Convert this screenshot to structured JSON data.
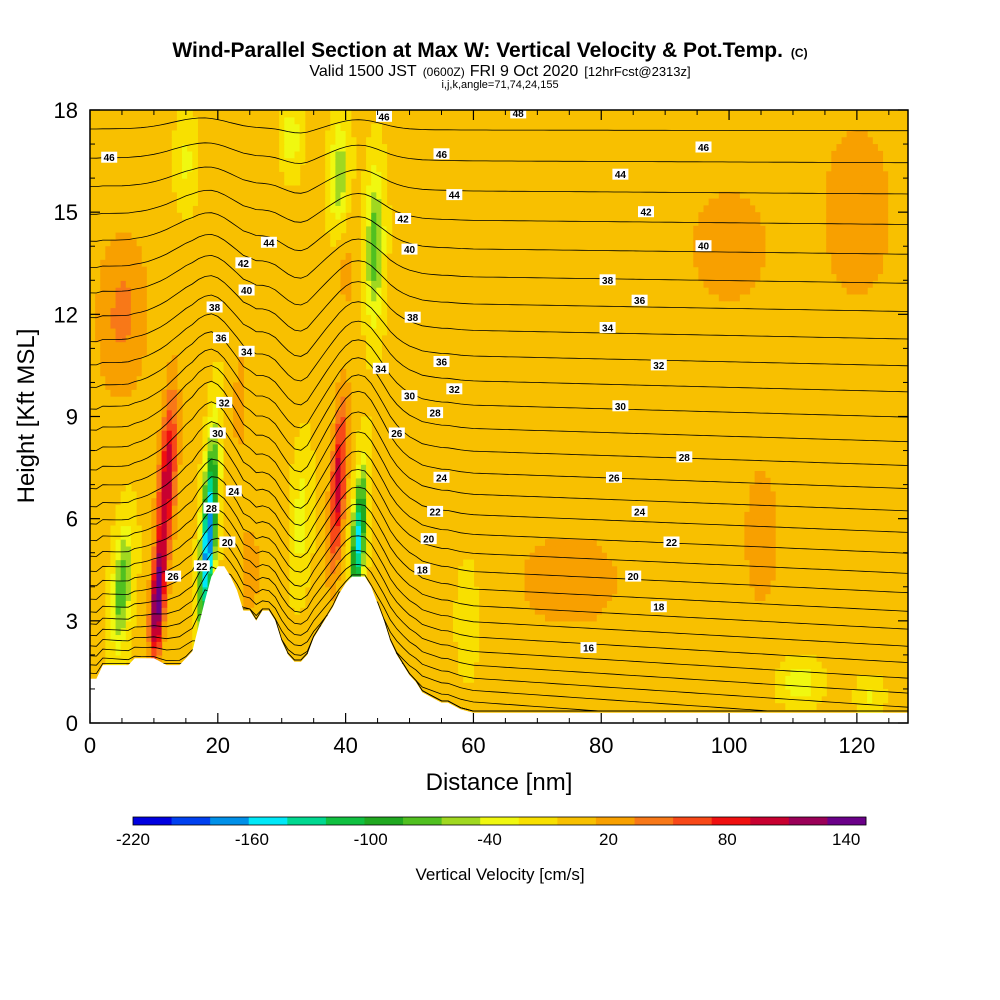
{
  "chart_data": {
    "type": "heatmap",
    "title": "Wind-Parallel Section at Max W: Vertical Velocity & Pot.Temp.",
    "title_mark": "(C)",
    "subtitle_prefix": "Valid 1500 JST",
    "subtitle_z": "(0600Z)",
    "subtitle_date": "FRI 9 Oct 2020",
    "subtitle_fcst": "[12hrFcst@2313z]",
    "subtitle_indices": "i,j,k,angle=71,74,24,155",
    "xlabel": "Distance [nm]",
    "ylabel": "Height [Kft MSL]",
    "xlim": [
      0,
      128
    ],
    "ylim": [
      0,
      18
    ],
    "xticks": [
      0,
      20,
      40,
      60,
      80,
      100,
      120
    ],
    "yticks": [
      0,
      3,
      6,
      9,
      12,
      15,
      18
    ],
    "colorbar": {
      "title": "Vertical Velocity [cm/s]",
      "bounds": [
        -220,
        150
      ],
      "step": 20,
      "tick_labels": [
        -220,
        -160,
        -100,
        -40,
        20,
        80,
        140
      ],
      "colors": [
        "#0000e0",
        "#0040f0",
        "#0090e8",
        "#00e8f8",
        "#00d890",
        "#10c040",
        "#20a820",
        "#50c020",
        "#a0d820",
        "#f0f810",
        "#f8e000",
        "#f8c000",
        "#f8a000",
        "#f87818",
        "#f84818",
        "#f01010",
        "#c80030",
        "#9a0058",
        "#6a0088"
      ]
    },
    "terrain": {
      "x": [
        0,
        1,
        2,
        4,
        6,
        7,
        8,
        10,
        12,
        14,
        16,
        18,
        19,
        20,
        21,
        22,
        23,
        24,
        25,
        26,
        27,
        28,
        29,
        30,
        31,
        32,
        33,
        34,
        35,
        36,
        37,
        38,
        39,
        40,
        41,
        42,
        43,
        44,
        45,
        46,
        47,
        48,
        49,
        50,
        51,
        52,
        54,
        55,
        56,
        58,
        60,
        70,
        80,
        90,
        100,
        110,
        120,
        128
      ],
      "kft": [
        1.3,
        1.3,
        1.7,
        1.7,
        1.7,
        1.9,
        1.9,
        1.9,
        1.7,
        1.7,
        2.1,
        3.6,
        4.3,
        4.6,
        4.6,
        4.3,
        3.9,
        3.3,
        3.3,
        3.0,
        3.3,
        3.3,
        3.0,
        2.4,
        2.0,
        1.8,
        1.8,
        2.0,
        2.5,
        2.8,
        3.1,
        3.4,
        3.8,
        4.1,
        4.3,
        4.3,
        4.3,
        4.0,
        3.5,
        3.0,
        2.4,
        2.0,
        1.7,
        1.4,
        1.2,
        0.9,
        0.7,
        0.6,
        0.6,
        0.4,
        0.3,
        0.3,
        0.3,
        0.3,
        0.3,
        0.3,
        0.3,
        0.3
      ]
    },
    "updrafts": [
      {
        "kind": "updraft",
        "x": 12.0,
        "y": 7.0,
        "sx": 1.3,
        "sy": 2.6,
        "tilt": 0.28,
        "value": 115
      },
      {
        "kind": "updraft",
        "x": 10.5,
        "y": 3.5,
        "sx": 1.0,
        "sy": 1.6,
        "tilt": 0.28,
        "value": 150
      },
      {
        "kind": "updraft",
        "x": 38.8,
        "y": 7.0,
        "sx": 1.1,
        "sy": 2.4,
        "tilt": 0.28,
        "value": 110
      },
      {
        "kind": "updraft",
        "x": 23.5,
        "y": 9.5,
        "sx": 1.0,
        "sy": 1.6,
        "tilt": 0.2,
        "value": 30
      },
      {
        "kind": "updraft",
        "x": 75,
        "y": 4.2,
        "sx": 8,
        "sy": 1.4,
        "tilt": 0,
        "value": 35
      },
      {
        "kind": "updraft",
        "x": 105,
        "y": 5.5,
        "sx": 3,
        "sy": 2.5,
        "tilt": 0,
        "value": 28
      },
      {
        "kind": "updraft",
        "x": 120,
        "y": 15,
        "sx": 6,
        "sy": 3,
        "tilt": 0,
        "value": 30
      },
      {
        "kind": "updraft",
        "x": 100,
        "y": 14,
        "sx": 7,
        "sy": 2,
        "tilt": 0,
        "value": 28
      },
      {
        "kind": "updraft",
        "x": 5,
        "y": 12,
        "sx": 4,
        "sy": 2.5,
        "tilt": 0.1,
        "value": 40
      },
      {
        "kind": "updraft",
        "x": 25,
        "y": 4.5,
        "sx": 1.3,
        "sy": 1.3,
        "tilt": 0,
        "value": 35
      },
      {
        "kind": "updraft",
        "x": 40,
        "y": 13.5,
        "sx": 2.0,
        "sy": 2.0,
        "tilt": 0,
        "value": 20
      },
      {
        "kind": "downdraft",
        "x": 18.5,
        "y": 5.4,
        "sx": 1.1,
        "sy": 2.8,
        "tilt": 0.28,
        "value": -190
      },
      {
        "kind": "downdraft",
        "x": 42.0,
        "y": 5.4,
        "sx": 1.0,
        "sy": 2.0,
        "tilt": 0.3,
        "value": -150
      },
      {
        "kind": "downdraft",
        "x": 44.5,
        "y": 14.0,
        "sx": 1.4,
        "sy": 2.2,
        "tilt": 0.08,
        "value": -80
      },
      {
        "kind": "downdraft",
        "x": 39.0,
        "y": 16.0,
        "sx": 1.5,
        "sy": 1.6,
        "tilt": 0.1,
        "value": -65
      },
      {
        "kind": "downdraft",
        "x": 31.5,
        "y": 17.2,
        "sx": 1.5,
        "sy": 1.0,
        "tilt": 0,
        "value": -40
      },
      {
        "kind": "downdraft",
        "x": 5,
        "y": 4.0,
        "sx": 1.5,
        "sy": 1.8,
        "tilt": 0.35,
        "value": -80
      },
      {
        "kind": "downdraft",
        "x": 33,
        "y": 6.0,
        "sx": 1.5,
        "sy": 2.0,
        "tilt": 0.2,
        "value": -35
      },
      {
        "kind": "downdraft",
        "x": 15,
        "y": 16.5,
        "sx": 1.6,
        "sy": 1.3,
        "tilt": 0,
        "value": -30
      },
      {
        "kind": "downdraft",
        "x": 59,
        "y": 3.0,
        "sx": 1.5,
        "sy": 1.5,
        "tilt": 0,
        "value": -25
      },
      {
        "kind": "downdraft",
        "x": 111,
        "y": 1.2,
        "sx": 3.0,
        "sy": 0.6,
        "tilt": 0,
        "value": -40
      },
      {
        "kind": "downdraft",
        "x": 122,
        "y": 0.8,
        "sx": 2.0,
        "sy": 0.5,
        "tilt": 0,
        "value": -30
      }
    ],
    "contour_labels": [
      {
        "text": "46",
        "x": 3,
        "y": 16.6
      },
      {
        "text": "46",
        "x": 46,
        "y": 17.8
      },
      {
        "text": "48",
        "x": 67,
        "y": 17.9
      },
      {
        "text": "46",
        "x": 55,
        "y": 16.7
      },
      {
        "text": "46",
        "x": 96,
        "y": 16.9
      },
      {
        "text": "44",
        "x": 57,
        "y": 15.5
      },
      {
        "text": "44",
        "x": 83,
        "y": 16.1
      },
      {
        "text": "44",
        "x": 28,
        "y": 14.1
      },
      {
        "text": "42",
        "x": 49,
        "y": 14.8
      },
      {
        "text": "42",
        "x": 87,
        "y": 15.0
      },
      {
        "text": "42",
        "x": 24,
        "y": 13.5
      },
      {
        "text": "40",
        "x": 50,
        "y": 13.9
      },
      {
        "text": "40",
        "x": 96,
        "y": 14.0
      },
      {
        "text": "40",
        "x": 24.5,
        "y": 12.7
      },
      {
        "text": "38",
        "x": 19.5,
        "y": 12.2
      },
      {
        "text": "38",
        "x": 81,
        "y": 13.0
      },
      {
        "text": "38",
        "x": 50.5,
        "y": 11.9
      },
      {
        "text": "36",
        "x": 86,
        "y": 12.4
      },
      {
        "text": "36",
        "x": 20.5,
        "y": 11.3
      },
      {
        "text": "36",
        "x": 55,
        "y": 10.6
      },
      {
        "text": "34",
        "x": 24.5,
        "y": 10.9
      },
      {
        "text": "34",
        "x": 81,
        "y": 11.6
      },
      {
        "text": "34",
        "x": 45.5,
        "y": 10.4
      },
      {
        "text": "32",
        "x": 89,
        "y": 10.5
      },
      {
        "text": "32",
        "x": 57,
        "y": 9.8
      },
      {
        "text": "32",
        "x": 21,
        "y": 9.4
      },
      {
        "text": "30",
        "x": 50,
        "y": 9.6
      },
      {
        "text": "30",
        "x": 83,
        "y": 9.3
      },
      {
        "text": "30",
        "x": 20,
        "y": 8.5
      },
      {
        "text": "28",
        "x": 54,
        "y": 9.1
      },
      {
        "text": "28",
        "x": 93,
        "y": 7.8
      },
      {
        "text": "28",
        "x": 19,
        "y": 6.3
      },
      {
        "text": "26",
        "x": 48,
        "y": 8.5
      },
      {
        "text": "26",
        "x": 82,
        "y": 7.2
      },
      {
        "text": "26",
        "x": 13,
        "y": 4.3
      },
      {
        "text": "24",
        "x": 55,
        "y": 7.2
      },
      {
        "text": "24",
        "x": 86,
        "y": 6.2
      },
      {
        "text": "24",
        "x": 22.5,
        "y": 6.8
      },
      {
        "text": "22",
        "x": 54,
        "y": 6.2
      },
      {
        "text": "22",
        "x": 91,
        "y": 5.3
      },
      {
        "text": "22",
        "x": 17.5,
        "y": 4.6
      },
      {
        "text": "20",
        "x": 53,
        "y": 5.4
      },
      {
        "text": "20",
        "x": 85,
        "y": 4.3
      },
      {
        "text": "20",
        "x": 21.5,
        "y": 5.3
      },
      {
        "text": "18",
        "x": 52,
        "y": 4.5
      },
      {
        "text": "18",
        "x": 89,
        "y": 3.4
      },
      {
        "text": "16",
        "x": 78,
        "y": 2.2
      }
    ]
  }
}
